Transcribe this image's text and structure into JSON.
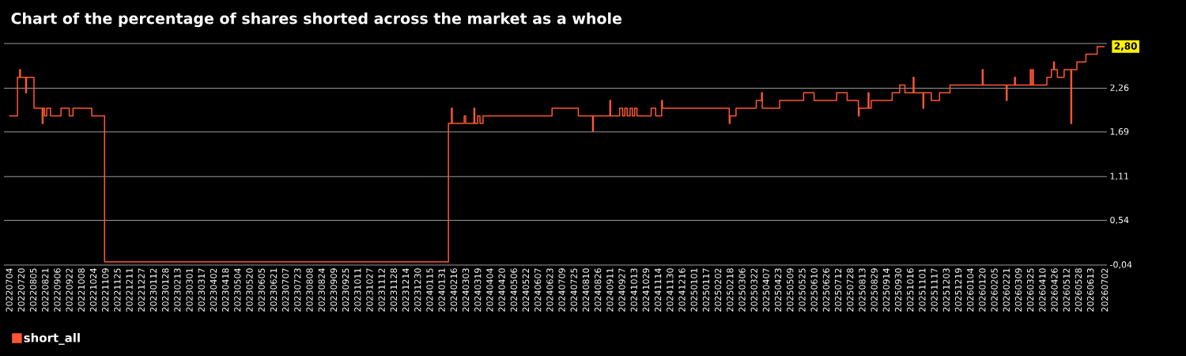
{
  "chart_data": {
    "type": "step",
    "title": "Chart of the percentage of shares shorted across the market as a whole",
    "xlim": [
      "2022-06-27",
      "2026-07-05"
    ],
    "ylim": [
      -0.04,
      2.84
    ],
    "yticks": [
      {
        "value": -0.04,
        "label": "-0,04"
      },
      {
        "value": 0.54,
        "label": "0,54"
      },
      {
        "value": 1.11,
        "label": "1,11"
      },
      {
        "value": 1.69,
        "label": "1,69"
      },
      {
        "value": 2.26,
        "label": "2,26"
      },
      {
        "value": 2.84,
        "label": null
      }
    ],
    "xticks": [
      {
        "value": "2022-07-04",
        "label": "20220704"
      },
      {
        "value": "2022-07-20",
        "label": "20220720"
      },
      {
        "value": "2022-08-05",
        "label": "20220805"
      },
      {
        "value": "2022-08-21",
        "label": "20220821"
      },
      {
        "value": "2022-09-06",
        "label": "20220906"
      },
      {
        "value": "2022-09-22",
        "label": "20220922"
      },
      {
        "value": "2022-10-08",
        "label": "20221008"
      },
      {
        "value": "2022-10-24",
        "label": "20221024"
      },
      {
        "value": "2022-11-09",
        "label": "20221109"
      },
      {
        "value": "2022-11-25",
        "label": "20221125"
      },
      {
        "value": "2022-12-11",
        "label": "20221211"
      },
      {
        "value": "2022-12-27",
        "label": "20221227"
      },
      {
        "value": "2023-01-12",
        "label": "20230112"
      },
      {
        "value": "2023-01-28",
        "label": "20230128"
      },
      {
        "value": "2023-02-13",
        "label": "20230213"
      },
      {
        "value": "2023-03-01",
        "label": "20230301"
      },
      {
        "value": "2023-03-17",
        "label": "20230317"
      },
      {
        "value": "2023-04-02",
        "label": "20230402"
      },
      {
        "value": "2023-04-18",
        "label": "20230418"
      },
      {
        "value": "2023-05-04",
        "label": "20230504"
      },
      {
        "value": "2023-05-20",
        "label": "20230520"
      },
      {
        "value": "2023-06-05",
        "label": "20230605"
      },
      {
        "value": "2023-06-21",
        "label": "20230621"
      },
      {
        "value": "2023-07-07",
        "label": "20230707"
      },
      {
        "value": "2023-07-23",
        "label": "20230723"
      },
      {
        "value": "2023-08-08",
        "label": "20230808"
      },
      {
        "value": "2023-08-24",
        "label": "20230824"
      },
      {
        "value": "2023-09-09",
        "label": "20230909"
      },
      {
        "value": "2023-09-25",
        "label": "20230925"
      },
      {
        "value": "2023-10-11",
        "label": "20231011"
      },
      {
        "value": "2023-10-27",
        "label": "20231027"
      },
      {
        "value": "2023-11-12",
        "label": "20231112"
      },
      {
        "value": "2023-11-28",
        "label": "20231128"
      },
      {
        "value": "2023-12-14",
        "label": "20231214"
      },
      {
        "value": "2023-12-30",
        "label": "20231230"
      },
      {
        "value": "2024-01-15",
        "label": "20240115"
      },
      {
        "value": "2024-01-31",
        "label": "20240131"
      },
      {
        "value": "2024-02-16",
        "label": "20240216"
      },
      {
        "value": "2024-03-03",
        "label": "20240303"
      },
      {
        "value": "2024-03-19",
        "label": "20240319"
      },
      {
        "value": "2024-04-04",
        "label": "20240404"
      },
      {
        "value": "2024-04-20",
        "label": "20240420"
      },
      {
        "value": "2024-05-06",
        "label": "20240506"
      },
      {
        "value": "2024-05-22",
        "label": "20240522"
      },
      {
        "value": "2024-06-07",
        "label": "20240607"
      },
      {
        "value": "2024-06-23",
        "label": "20240623"
      },
      {
        "value": "2024-07-09",
        "label": "20240709"
      },
      {
        "value": "2024-07-25",
        "label": "20240725"
      },
      {
        "value": "2024-08-10",
        "label": "20240810"
      },
      {
        "value": "2024-08-26",
        "label": "20240826"
      },
      {
        "value": "2024-09-11",
        "label": "20240911"
      },
      {
        "value": "2024-09-27",
        "label": "20240927"
      },
      {
        "value": "2024-10-13",
        "label": "20241013"
      },
      {
        "value": "2024-10-29",
        "label": "20241029"
      },
      {
        "value": "2024-11-14",
        "label": "20241114"
      },
      {
        "value": "2024-11-30",
        "label": "20241130"
      },
      {
        "value": "2024-12-16",
        "label": "20241216"
      },
      {
        "value": "2025-01-01",
        "label": "20250101"
      },
      {
        "value": "2025-01-17",
        "label": "20250117"
      },
      {
        "value": "2025-02-02",
        "label": "20250202"
      },
      {
        "value": "2025-02-18",
        "label": "20250218"
      },
      {
        "value": "2025-03-06",
        "label": "20250306"
      },
      {
        "value": "2025-03-22",
        "label": "20250322"
      },
      {
        "value": "2025-04-07",
        "label": "20250407"
      },
      {
        "value": "2025-04-23",
        "label": "20250423"
      },
      {
        "value": "2025-05-09",
        "label": "20250509"
      },
      {
        "value": "2025-05-25",
        "label": "20250525"
      },
      {
        "value": "2025-06-10",
        "label": "20250610"
      },
      {
        "value": "2025-06-26",
        "label": "20250626"
      },
      {
        "value": "2025-07-12",
        "label": "20250712"
      },
      {
        "value": "2025-07-28",
        "label": "20250728"
      },
      {
        "value": "2025-08-13",
        "label": "20250813"
      },
      {
        "value": "2025-08-29",
        "label": "20250829"
      },
      {
        "value": "2025-09-14",
        "label": "20250914"
      },
      {
        "value": "2025-09-30",
        "label": "20250930"
      },
      {
        "value": "2025-10-16",
        "label": "20251016"
      },
      {
        "value": "2025-11-01",
        "label": "20251101"
      },
      {
        "value": "2025-11-17",
        "label": "20251117"
      },
      {
        "value": "2025-12-03",
        "label": "20251203"
      },
      {
        "value": "2025-12-19",
        "label": "20251219"
      },
      {
        "value": "2026-01-04",
        "label": "20260104"
      },
      {
        "value": "2026-01-20",
        "label": "20260120"
      },
      {
        "value": "2026-02-05",
        "label": "20260205"
      },
      {
        "value": "2026-02-21",
        "label": "20260221"
      },
      {
        "value": "2026-03-09",
        "label": "20260309"
      },
      {
        "value": "2026-03-25",
        "label": "20260325"
      },
      {
        "value": "2026-04-10",
        "label": "20260410"
      },
      {
        "value": "2026-04-26",
        "label": "20260426"
      },
      {
        "value": "2026-05-12",
        "label": "20260512"
      },
      {
        "value": "2026-05-28",
        "label": "20260528"
      },
      {
        "value": "2026-06-13",
        "label": "20260613"
      },
      {
        "value": "2026-07-02",
        "label": "20260702"
      }
    ],
    "grid": "y",
    "legend": "bottom left",
    "series": [
      {
        "name": "short_all",
        "color": "#ff5733",
        "x": [
          "2022-07-04",
          "2022-07-15",
          "2022-07-18",
          "2022-07-19",
          "2022-07-26",
          "2022-07-27",
          "2022-08-06",
          "2022-08-17",
          "2022-08-18",
          "2022-08-20",
          "2022-08-23",
          "2022-08-28",
          "2022-09-11",
          "2022-09-22",
          "2022-09-27",
          "2022-10-22",
          "2022-11-08",
          "2024-02-09",
          "2024-02-13",
          "2024-02-14",
          "2024-03-01",
          "2024-03-03",
          "2024-03-14",
          "2024-03-15",
          "2024-03-19",
          "2024-03-22",
          "2024-03-26",
          "2024-06-26",
          "2024-07-31",
          "2024-08-19",
          "2024-08-20",
          "2024-09-11",
          "2024-09-12",
          "2024-09-24",
          "2024-09-28",
          "2024-10-01",
          "2024-10-04",
          "2024-10-08",
          "2024-10-11",
          "2024-10-14",
          "2024-10-17",
          "2024-10-20",
          "2024-11-05",
          "2024-11-11",
          "2024-11-19",
          "2024-11-20",
          "2025-02-17",
          "2025-02-18",
          "2025-02-26",
          "2025-03-25",
          "2025-04-01",
          "2025-04-02",
          "2025-04-25",
          "2025-05-27",
          "2025-06-10",
          "2025-07-10",
          "2025-07-24",
          "2025-08-08",
          "2025-08-09",
          "2025-08-21",
          "2025-08-22",
          "2025-08-25",
          "2025-09-22",
          "2025-10-02",
          "2025-10-09",
          "2025-10-20",
          "2025-10-21",
          "2025-11-02",
          "2025-11-03",
          "2025-11-13",
          "2025-11-24",
          "2025-12-08",
          "2026-01-20",
          "2026-01-21",
          "2026-02-21",
          "2026-02-22",
          "2026-03-04",
          "2026-03-05",
          "2026-03-25",
          "2026-03-26",
          "2026-03-28",
          "2026-03-29",
          "2026-04-16",
          "2026-04-22",
          "2026-04-25",
          "2026-04-26",
          "2026-04-30",
          "2026-05-09",
          "2026-05-18",
          "2026-05-19",
          "2026-05-26",
          "2026-06-07",
          "2026-06-22",
          "2026-07-02"
        ],
        "values": [
          1.9,
          2.4,
          2.5,
          2.4,
          2.2,
          2.4,
          2.0,
          1.8,
          2.0,
          1.9,
          2.0,
          1.9,
          2.0,
          1.9,
          2.0,
          1.9,
          0.0,
          1.8,
          2.0,
          1.8,
          1.9,
          1.8,
          2.0,
          1.8,
          1.9,
          1.8,
          1.9,
          2.0,
          1.9,
          1.7,
          1.9,
          2.1,
          1.9,
          2.0,
          1.9,
          2.0,
          1.9,
          2.0,
          1.9,
          2.0,
          1.9,
          1.9,
          2.0,
          1.9,
          2.1,
          2.0,
          1.8,
          1.9,
          2.0,
          2.1,
          2.2,
          2.0,
          2.1,
          2.2,
          2.1,
          2.2,
          2.1,
          1.9,
          2.0,
          2.2,
          2.0,
          2.1,
          2.2,
          2.3,
          2.2,
          2.4,
          2.2,
          2.0,
          2.2,
          2.1,
          2.2,
          2.3,
          2.5,
          2.3,
          2.1,
          2.3,
          2.4,
          2.3,
          2.5,
          2.3,
          2.5,
          2.3,
          2.4,
          2.5,
          2.6,
          2.5,
          2.4,
          2.5,
          1.8,
          2.5,
          2.6,
          2.7,
          2.8,
          2.8
        ]
      }
    ],
    "annotations": [
      {
        "text": "2,80",
        "x": "2026-07-02",
        "y": 2.8
      }
    ]
  }
}
